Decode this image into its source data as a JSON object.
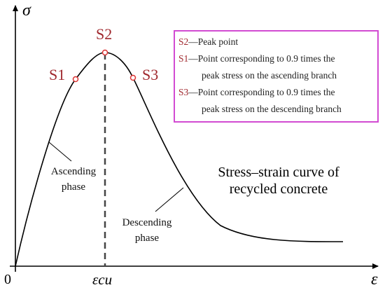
{
  "axes": {
    "y_label": "σ",
    "x_label": "ε",
    "origin": "0",
    "peak_strain": "εcu"
  },
  "points": [
    {
      "label": "S1"
    },
    {
      "label": "S2"
    },
    {
      "label": "S3"
    }
  ],
  "legend": [
    {
      "key": "S2",
      "lines": [
        "—Peak point"
      ]
    },
    {
      "key": "S1",
      "lines": [
        "—Point corresponding to 0.9 times the",
        "peak stress on the ascending branch"
      ]
    },
    {
      "key": "S3",
      "lines": [
        "—Point corresponding to 0.9 times the",
        "peak stress on the descending branch"
      ]
    }
  ],
  "phases": [
    {
      "lines": [
        "Ascending",
        "phase"
      ]
    },
    {
      "lines": [
        "Descending",
        "phase"
      ]
    }
  ],
  "title": {
    "lines": [
      "Stress–strain curve of",
      "recycled concrete"
    ]
  }
}
